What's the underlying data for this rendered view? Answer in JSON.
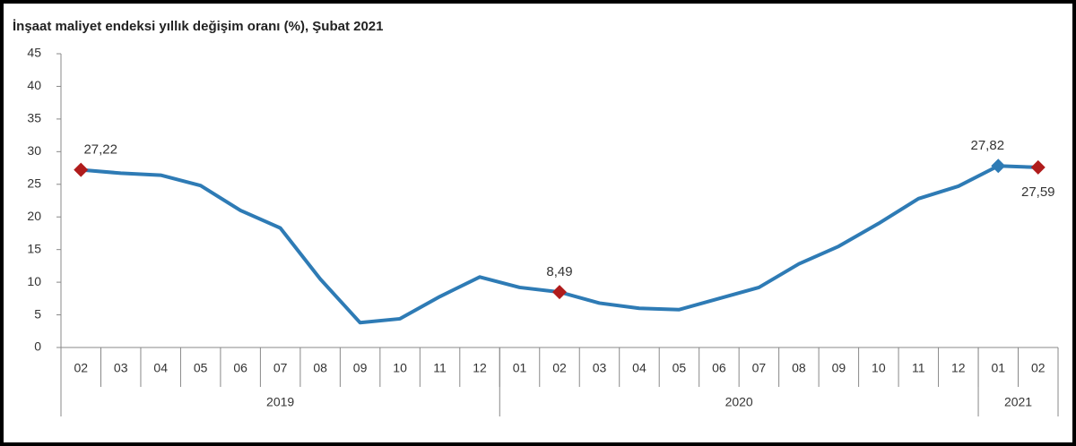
{
  "chart_data": {
    "type": "line",
    "title": "İnşaat maliyet endeksi yıllık değişim oranı (%), Şubat 2021",
    "categories": [
      "02",
      "03",
      "04",
      "05",
      "06",
      "07",
      "08",
      "09",
      "10",
      "11",
      "12",
      "01",
      "02",
      "03",
      "04",
      "05",
      "06",
      "07",
      "08",
      "09",
      "10",
      "11",
      "12",
      "01",
      "02"
    ],
    "year_groups": [
      {
        "label": "2019",
        "count": 11
      },
      {
        "label": "2020",
        "count": 12
      },
      {
        "label": "2021",
        "count": 2
      }
    ],
    "series": [
      {
        "color": "#2e7bb5",
        "values": [
          27.22,
          26.7,
          26.4,
          24.8,
          21,
          18.3,
          10.5,
          3.8,
          4.4,
          7.8,
          10.8,
          9.2,
          8.49,
          6.8,
          6.0,
          5.8,
          7.5,
          9.2,
          12.8,
          15.5,
          19,
          22.8,
          24.7,
          27.82,
          27.59
        ],
        "value_labels": [
          "27,22",
          null,
          null,
          null,
          null,
          null,
          null,
          null,
          null,
          null,
          null,
          null,
          "8,49",
          null,
          null,
          null,
          null,
          null,
          null,
          null,
          null,
          null,
          null,
          "27,82",
          "27,59"
        ],
        "marker_colors": [
          "#b01c1c",
          null,
          null,
          null,
          null,
          null,
          null,
          null,
          null,
          null,
          null,
          null,
          "#b01c1c",
          null,
          null,
          null,
          null,
          null,
          null,
          null,
          null,
          null,
          null,
          "#2e7bb5",
          "#b01c1c"
        ]
      }
    ],
    "ylim": [
      0,
      45
    ],
    "yticks": [
      0,
      5,
      10,
      15,
      20,
      25,
      30,
      35,
      40,
      45
    ],
    "grid": false
  }
}
